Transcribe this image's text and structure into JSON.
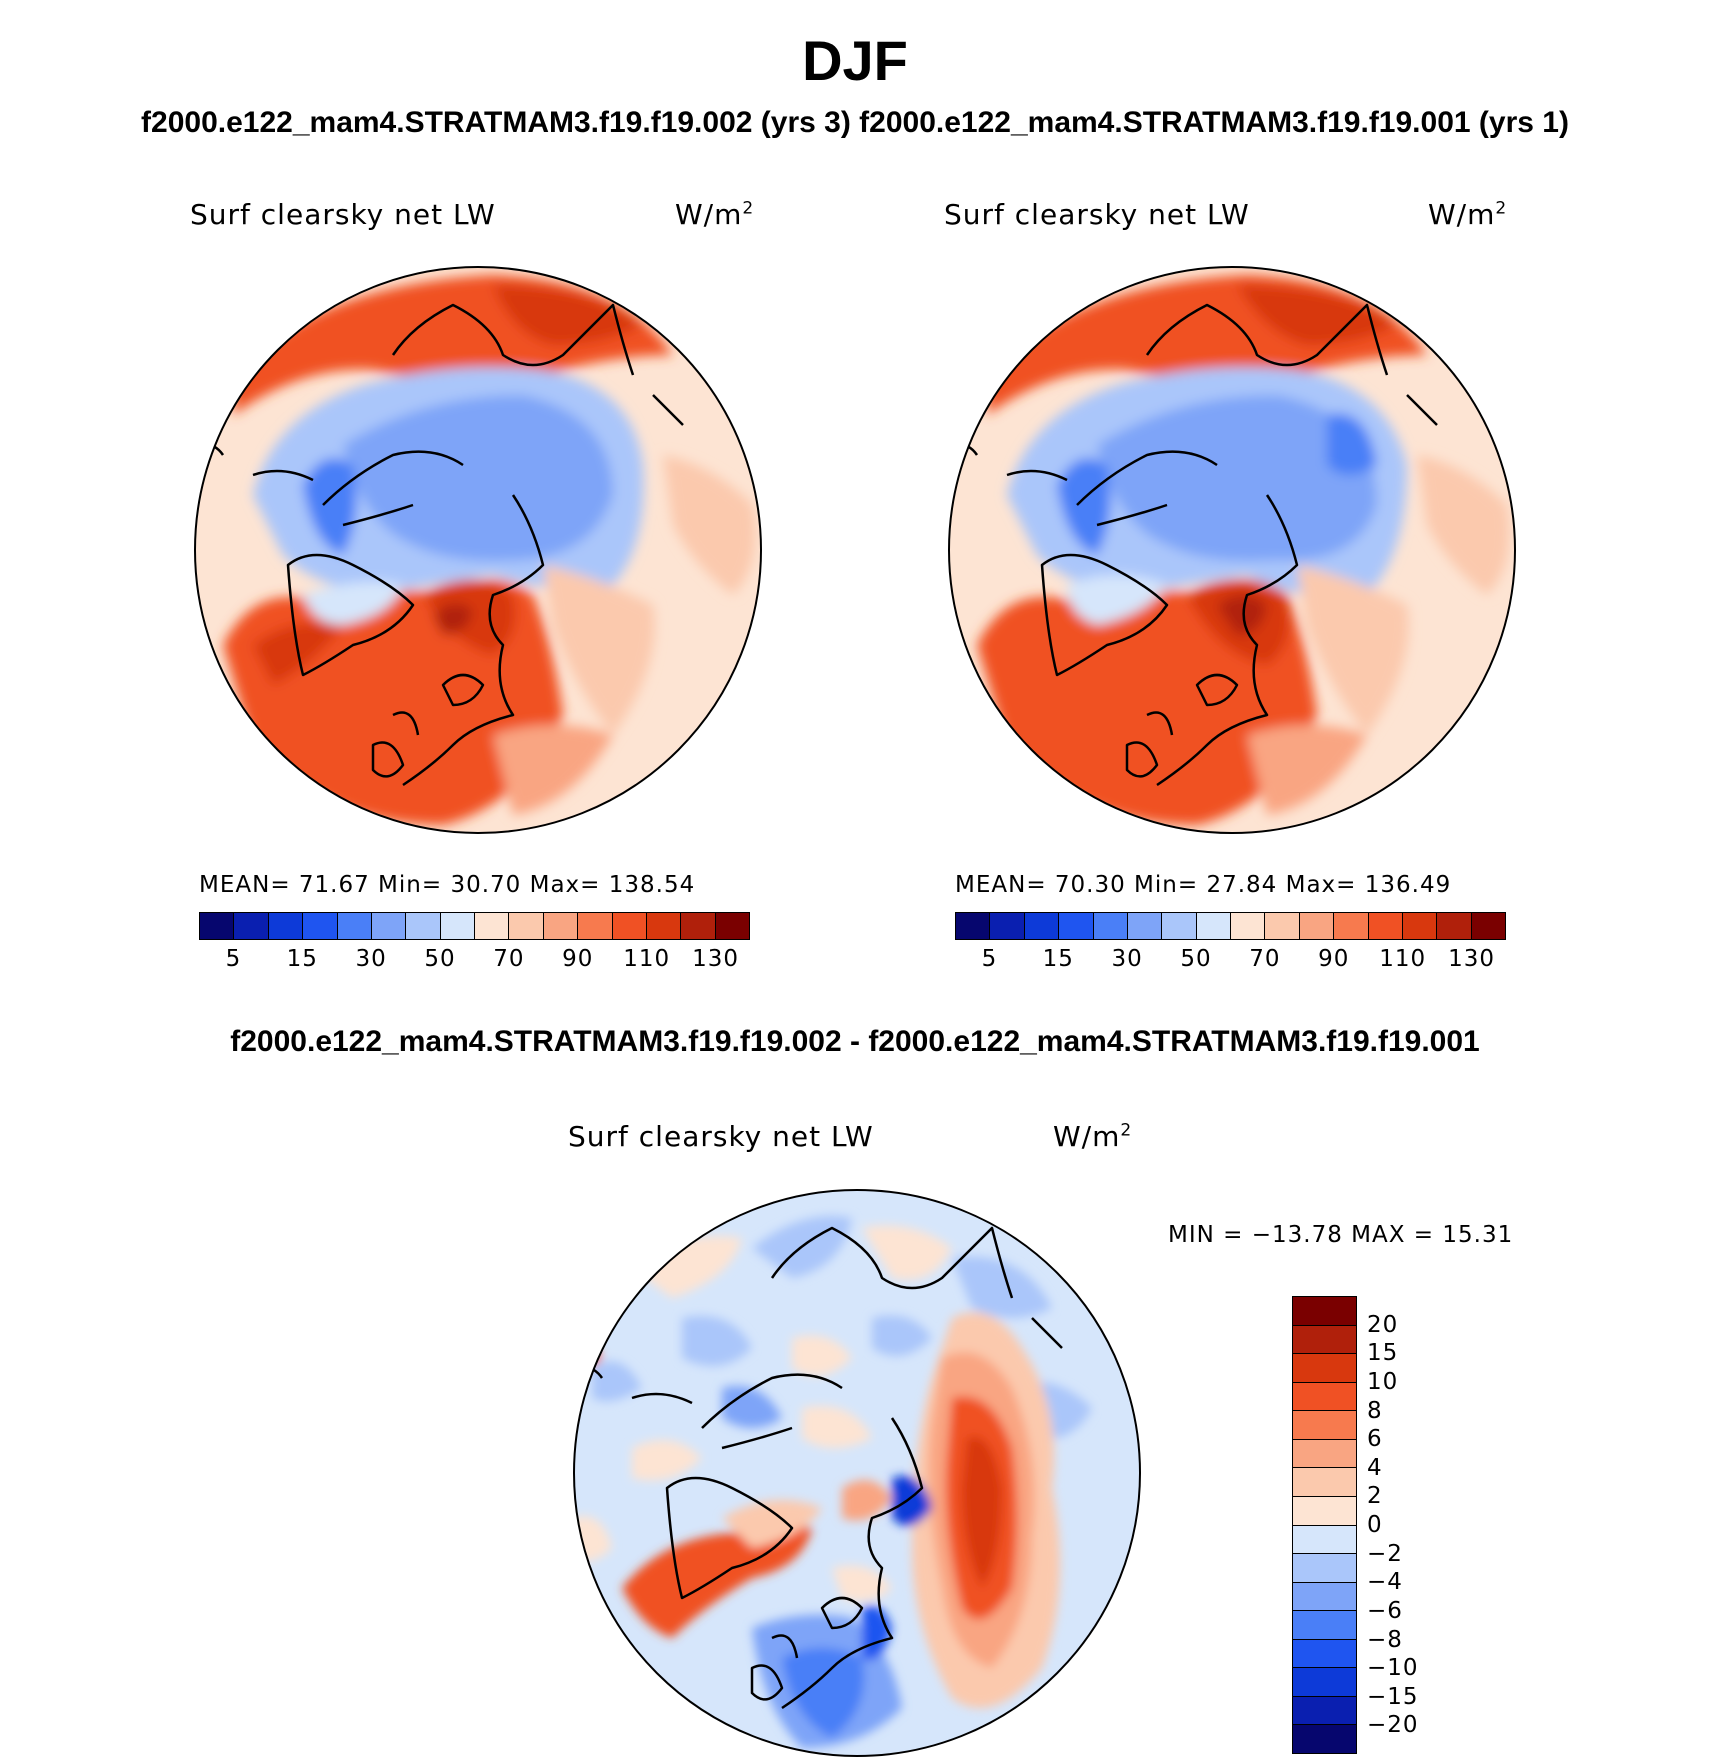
{
  "figure": {
    "title": "DJF",
    "case_titles": "f2000.e122_mam4.STRATMAM3.f19.f19.002 (yrs 3)  f2000.e122_mam4.STRATMAM3.f19.f19.001 (yrs 1)",
    "diff_title": "f2000.e122_mam4.STRATMAM3.f19.f19.002 - f2000.e122_mam4.STRATMAM3.f19.f19.001"
  },
  "panels": [
    {
      "variable": "Surf clearsky net LW",
      "units": "W/m",
      "units_sup": "2",
      "stats_text": "MEAN=   71.67   Min=   30.70   Max=  138.54"
    },
    {
      "variable": "Surf clearsky net LW",
      "units": "W/m",
      "units_sup": "2",
      "stats_text": "MEAN=   70.30   Min=   27.84   Max=  136.49"
    }
  ],
  "diff_panel": {
    "variable": "Surf clearsky net LW",
    "units": "W/m",
    "units_sup": "2",
    "minmax_text": "MIN  =  −13.78  MAX  =    15.31"
  },
  "colorbar_abs": {
    "colors": [
      "#06066e",
      "#0a1fb0",
      "#0d3ad8",
      "#1f55f0",
      "#4a7ff7",
      "#7ea4f8",
      "#aac6fa",
      "#d6e6fb",
      "#fde4d3",
      "#fbc9ad",
      "#f9a582",
      "#f77a4e",
      "#f05124",
      "#d8380e",
      "#b0200b",
      "#7a0000"
    ],
    "labels": [
      "5",
      "15",
      "30",
      "50",
      "70",
      "90",
      "110",
      "130"
    ]
  },
  "colorbar_diff": {
    "colors": [
      "#7a0000",
      "#b0200b",
      "#d8380e",
      "#f05124",
      "#f77a4e",
      "#f9a582",
      "#fbc9ad",
      "#fde4d3",
      "#d6e6fb",
      "#aac6fa",
      "#7ea4f8",
      "#4a7ff7",
      "#1f55f0",
      "#0d3ad8",
      "#0a1fb0",
      "#06066e"
    ],
    "labels": [
      "20",
      "15",
      "10",
      "8",
      "6",
      "4",
      "2",
      "0",
      "−2",
      "−4",
      "−6",
      "−8",
      "−10",
      "−15",
      "−20"
    ]
  }
}
